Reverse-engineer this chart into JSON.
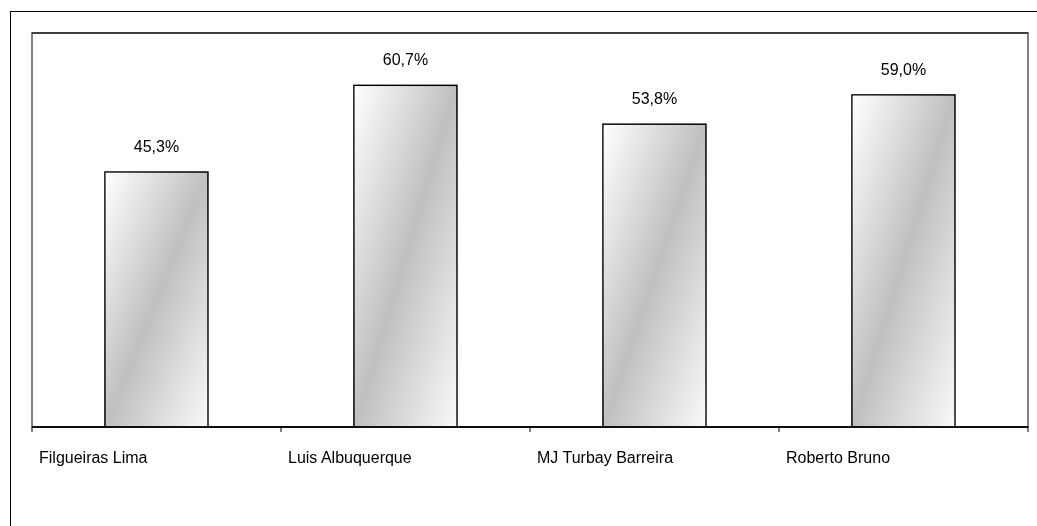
{
  "chart_data": {
    "type": "bar",
    "categories": [
      "Filgueiras Lima",
      "Luis Albuquerque",
      "MJ Turbay Barreira",
      "Roberto Bruno"
    ],
    "values": [
      45.3,
      60.7,
      53.8,
      59.0
    ],
    "value_labels": [
      "45,3%",
      "60,7%",
      "53,8%",
      "59,0%"
    ],
    "color": "#c0c0c0",
    "ylim": [
      0,
      70
    ],
    "grid": "y",
    "tick_labels": "x"
  }
}
